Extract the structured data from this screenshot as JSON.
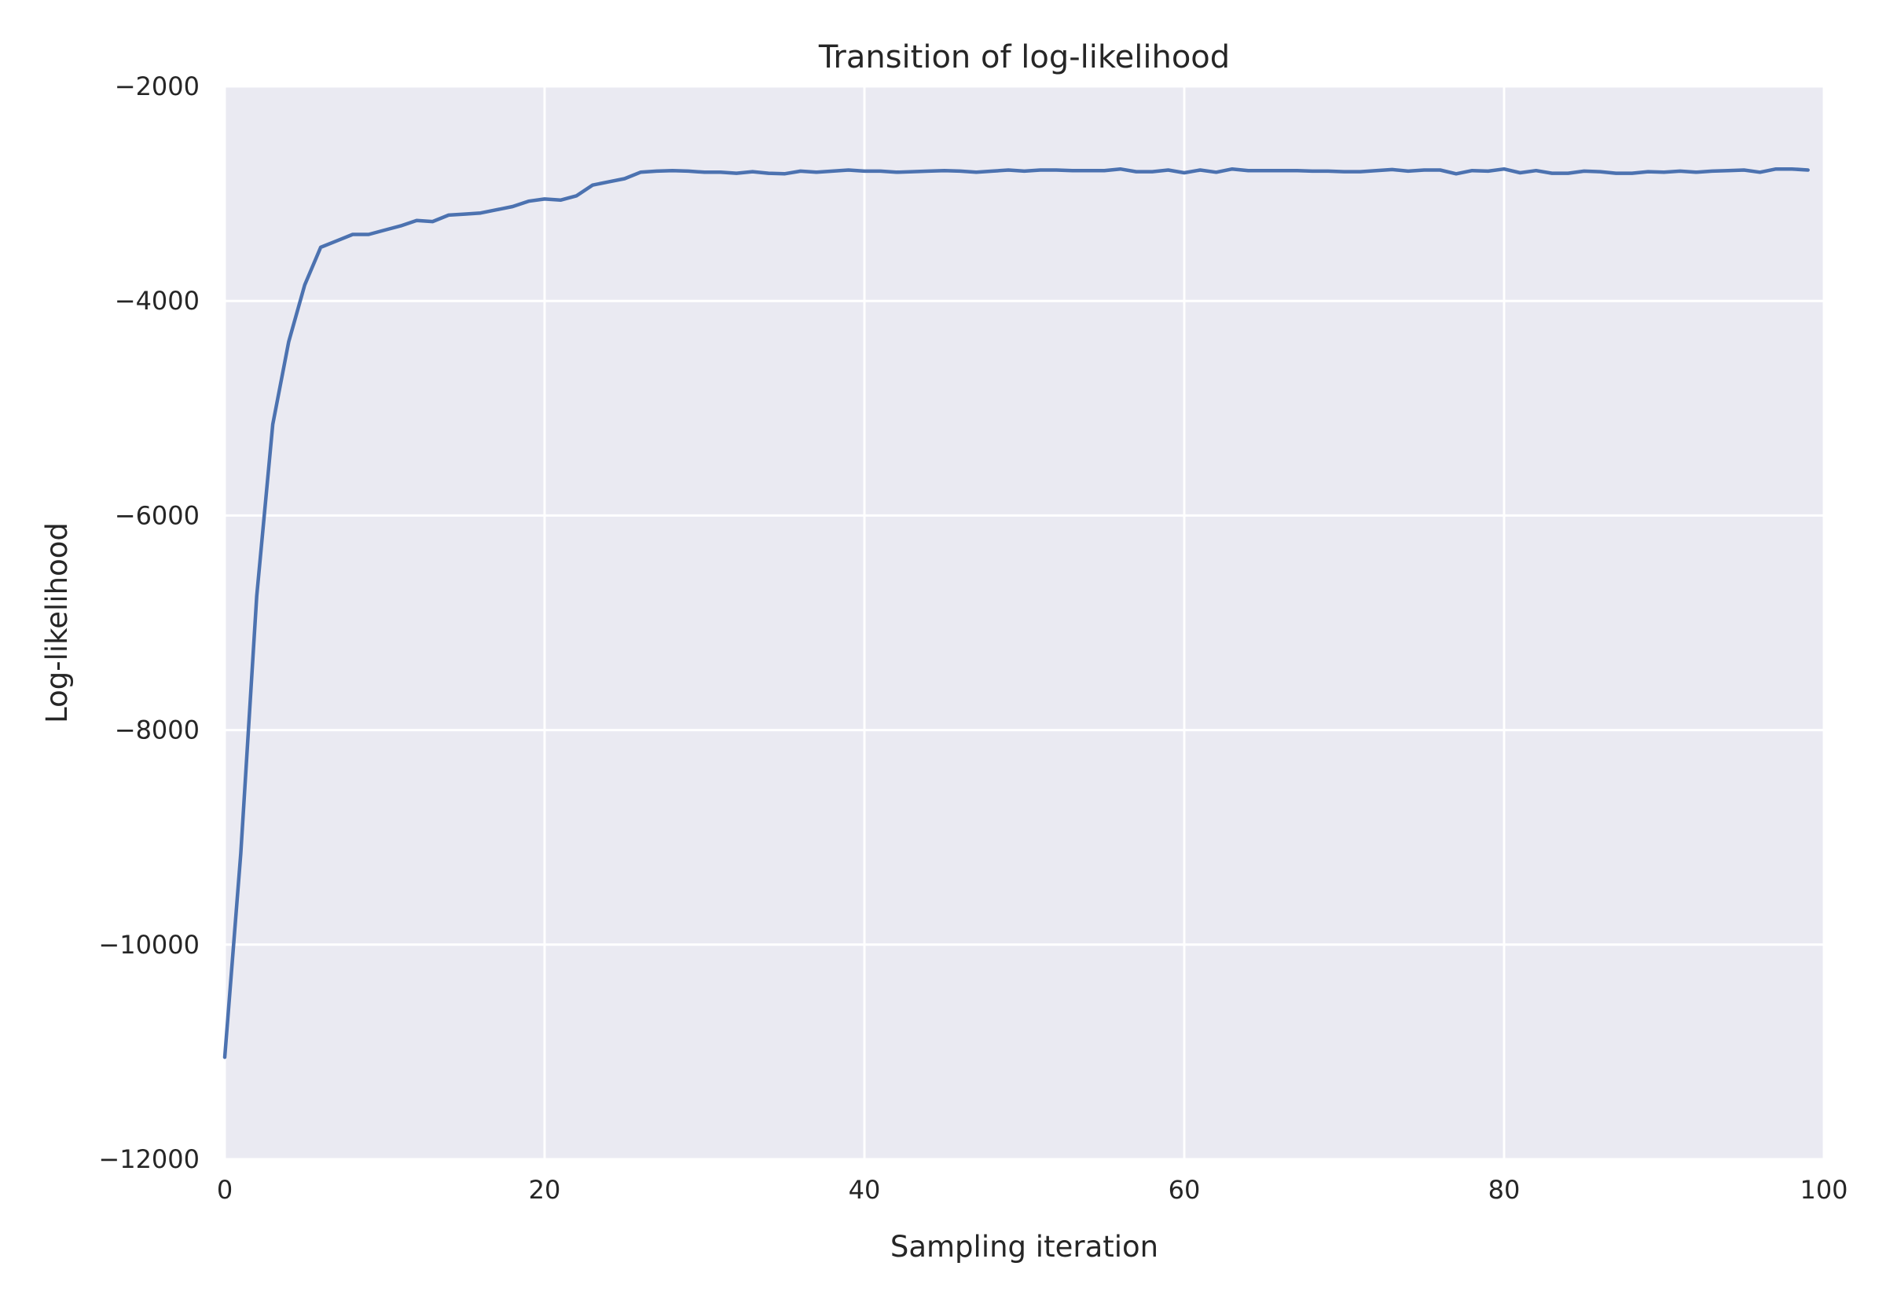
{
  "chart_data": {
    "type": "line",
    "title": "Transition of log-likelihood",
    "xlabel": "Sampling iteration",
    "ylabel": "Log-likelihood",
    "xlim": [
      0,
      100
    ],
    "ylim": [
      -12000,
      -2000
    ],
    "xticks": [
      0,
      20,
      40,
      60,
      80,
      100
    ],
    "yticks": [
      -12000,
      -10000,
      -8000,
      -6000,
      -4000,
      -2000
    ],
    "xtick_labels": [
      "0",
      "20",
      "40",
      "60",
      "80",
      "100"
    ],
    "ytick_labels": [
      "−12000",
      "−10000",
      "−8000",
      "−6000",
      "−4000",
      "−2000"
    ],
    "grid": true,
    "background_color": "#eaeaf2",
    "grid_color": "#ffffff",
    "series": [
      {
        "color": "#4c72b0",
        "x": [
          0,
          1,
          2,
          3,
          4,
          5,
          6,
          7,
          8,
          9,
          10,
          11,
          12,
          13,
          14,
          15,
          16,
          17,
          18,
          19,
          20,
          21,
          22,
          23,
          24,
          25,
          26,
          27,
          28,
          29,
          30,
          31,
          32,
          33,
          34,
          35,
          36,
          37,
          38,
          39,
          40,
          41,
          42,
          43,
          44,
          45,
          46,
          47,
          48,
          49,
          50,
          51,
          52,
          53,
          54,
          55,
          56,
          57,
          58,
          59,
          60,
          61,
          62,
          63,
          64,
          65,
          66,
          67,
          68,
          69,
          70,
          71,
          72,
          73,
          74,
          75,
          76,
          77,
          78,
          79,
          80,
          81,
          82,
          83,
          84,
          85,
          86,
          87,
          88,
          89,
          90,
          91,
          92,
          93,
          94,
          95,
          96,
          97,
          98,
          99
        ],
        "y": [
          -11050,
          -9150,
          -6750,
          -5150,
          -4380,
          -3850,
          -3500,
          -3440,
          -3380,
          -3380,
          -3340,
          -3300,
          -3250,
          -3260,
          -3200,
          -3190,
          -3180,
          -3150,
          -3120,
          -3070,
          -3050,
          -3060,
          -3020,
          -2920,
          -2890,
          -2860,
          -2800,
          -2790,
          -2785,
          -2790,
          -2800,
          -2800,
          -2810,
          -2795,
          -2810,
          -2815,
          -2790,
          -2800,
          -2790,
          -2780,
          -2790,
          -2790,
          -2800,
          -2795,
          -2790,
          -2785,
          -2790,
          -2800,
          -2790,
          -2780,
          -2790,
          -2780,
          -2780,
          -2785,
          -2785,
          -2785,
          -2770,
          -2795,
          -2795,
          -2780,
          -2805,
          -2780,
          -2800,
          -2770,
          -2785,
          -2785,
          -2785,
          -2785,
          -2790,
          -2790,
          -2795,
          -2795,
          -2785,
          -2775,
          -2790,
          -2780,
          -2780,
          -2815,
          -2785,
          -2790,
          -2770,
          -2805,
          -2785,
          -2810,
          -2810,
          -2790,
          -2795,
          -2810,
          -2810,
          -2795,
          -2800,
          -2790,
          -2800,
          -2790,
          -2785,
          -2780,
          -2800,
          -2770,
          -2770,
          -2780
        ]
      }
    ]
  }
}
